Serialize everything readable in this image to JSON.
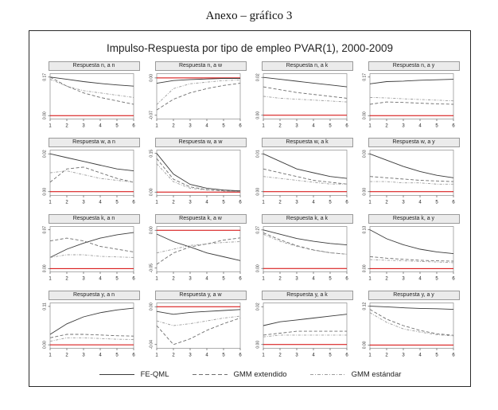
{
  "page": {
    "annex_title": "Anexo – gráfico 3"
  },
  "figure": {
    "title": "Impulso-Respuesta por tipo de empleo PVAR(1), 2000-2009"
  },
  "legend": {
    "items": [
      {
        "label": "FE-QML",
        "style": "solid"
      },
      {
        "label": "GMM extendido",
        "style": "dashed"
      },
      {
        "label": "GMM estándar",
        "style": "dashdot"
      }
    ]
  },
  "colors": {
    "series": [
      "#3a3a3a",
      "#6e6e6e",
      "#9c9c9c"
    ],
    "zero_line": "#d40000",
    "border": "#8a8a8a",
    "header_bg": "#ebebeb"
  },
  "chart_data": {
    "type": "line",
    "x": [
      1,
      2,
      3,
      4,
      5,
      6
    ],
    "xlabel": "",
    "ylabel": "",
    "grid": false,
    "legend_position": "bottom",
    "series_names": [
      "FE-QML",
      "GMM extendido",
      "GMM estándar"
    ],
    "subplots": [
      {
        "title": "Respuesta n, a n",
        "yticks": [
          0,
          0.17
        ],
        "ylim": [
          -0.015,
          0.185
        ],
        "zero_line": true,
        "series": [
          [
            0.17,
            0.16,
            0.15,
            0.142,
            0.135,
            0.13
          ],
          [
            0.17,
            0.13,
            0.1,
            0.08,
            0.065,
            0.05
          ],
          [
            0.16,
            0.13,
            0.11,
            0.1,
            0.09,
            0.08
          ]
        ]
      },
      {
        "title": "Respuesta n, a w",
        "yticks": [
          -0.07,
          0
        ],
        "ylim": [
          -0.077,
          0.008
        ],
        "zero_line": true,
        "series": [
          [
            -0.01,
            -0.005,
            -0.003,
            -0.002,
            -0.001,
            -0.001
          ],
          [
            -0.06,
            -0.04,
            -0.028,
            -0.02,
            -0.014,
            -0.01
          ],
          [
            -0.05,
            -0.02,
            -0.011,
            -0.008,
            -0.005,
            -0.004
          ]
        ]
      },
      {
        "title": "Respuesta n, a k",
        "yticks": [
          0,
          0.02
        ],
        "ylim": [
          -0.002,
          0.022
        ],
        "zero_line": true,
        "series": [
          [
            0.02,
            0.019,
            0.018,
            0.017,
            0.016,
            0.015
          ],
          [
            0.015,
            0.0135,
            0.012,
            0.011,
            0.01,
            0.009
          ],
          [
            0.01,
            0.009,
            0.0085,
            0.008,
            0.0075,
            0.007
          ]
        ]
      },
      {
        "title": "Respuesta n, a y",
        "yticks": [
          0,
          0.17
        ],
        "ylim": [
          -0.015,
          0.185
        ],
        "zero_line": true,
        "series": [
          [
            0.14,
            0.15,
            0.152,
            0.156,
            0.158,
            0.16
          ],
          [
            0.05,
            0.06,
            0.058,
            0.055,
            0.052,
            0.05
          ],
          [
            0.08,
            0.078,
            0.074,
            0.071,
            0.068,
            0.065
          ]
        ]
      },
      {
        "title": "Respuesta w, a n",
        "yticks": [
          0,
          0.02
        ],
        "ylim": [
          -0.002,
          0.022
        ],
        "zero_line": true,
        "series": [
          [
            0.02,
            0.018,
            0.016,
            0.014,
            0.012,
            0.011
          ],
          [
            0.005,
            0.012,
            0.013,
            0.01,
            0.007,
            0.005
          ],
          [
            0.01,
            0.011,
            0.009,
            0.007,
            0.006,
            0.005
          ]
        ]
      },
      {
        "title": "Respuesta w, a w",
        "yticks": [
          0,
          0.15
        ],
        "ylim": [
          -0.013,
          0.163
        ],
        "zero_line": true,
        "series": [
          [
            0.15,
            0.07,
            0.03,
            0.015,
            0.008,
            0.005
          ],
          [
            0.13,
            0.05,
            0.02,
            0.01,
            0.005,
            0.003
          ],
          [
            0.11,
            0.04,
            0.015,
            0.008,
            0.004,
            0.002
          ]
        ]
      },
      {
        "title": "Respuesta w, a k",
        "yticks": [
          0,
          0.01
        ],
        "ylim": [
          -0.001,
          0.011
        ],
        "zero_line": true,
        "series": [
          [
            0.01,
            0.008,
            0.006,
            0.005,
            0.004,
            0.0035
          ],
          [
            0.006,
            0.005,
            0.004,
            0.003,
            0.0025,
            0.002
          ],
          [
            0.004,
            0.0035,
            0.003,
            0.0025,
            0.002,
            0.002
          ]
        ]
      },
      {
        "title": "Respuesta w, a y",
        "yticks": [
          0,
          0.03
        ],
        "ylim": [
          -0.003,
          0.033
        ],
        "zero_line": true,
        "series": [
          [
            0.03,
            0.025,
            0.02,
            0.016,
            0.013,
            0.011
          ],
          [
            0.012,
            0.011,
            0.01,
            0.009,
            0.0085,
            0.008
          ],
          [
            0.008,
            0.008,
            0.007,
            0.007,
            0.006,
            0.006
          ]
        ]
      },
      {
        "title": "Respuesta k, a n",
        "yticks": [
          0,
          0.07
        ],
        "ylim": [
          -0.006,
          0.076
        ],
        "zero_line": true,
        "series": [
          [
            0.02,
            0.035,
            0.046,
            0.055,
            0.061,
            0.065
          ],
          [
            0.05,
            0.055,
            0.05,
            0.04,
            0.035,
            0.03
          ],
          [
            0.02,
            0.025,
            0.025,
            0.022,
            0.021,
            0.02
          ]
        ]
      },
      {
        "title": "Respuesta k, a w",
        "yticks": [
          -0.05,
          0
        ],
        "ylim": [
          -0.055,
          0.005
        ],
        "zero_line": true,
        "series": [
          [
            -0.005,
            -0.015,
            -0.022,
            -0.03,
            -0.035,
            -0.04
          ],
          [
            -0.045,
            -0.03,
            -0.022,
            -0.018,
            -0.013,
            -0.01
          ],
          [
            -0.03,
            -0.025,
            -0.02,
            -0.018,
            -0.016,
            -0.015
          ]
        ]
      },
      {
        "title": "Respuesta k, a k",
        "yticks": [
          0,
          0.27
        ],
        "ylim": [
          -0.024,
          0.294
        ],
        "zero_line": true,
        "series": [
          [
            0.27,
            0.24,
            0.21,
            0.19,
            0.175,
            0.165
          ],
          [
            0.25,
            0.2,
            0.16,
            0.13,
            0.11,
            0.1
          ],
          [
            0.24,
            0.19,
            0.155,
            0.128,
            0.11,
            0.1
          ]
        ]
      },
      {
        "title": "Respuesta k, a y",
        "yticks": [
          0,
          0.13
        ],
        "ylim": [
          -0.011,
          0.141
        ],
        "zero_line": true,
        "series": [
          [
            0.13,
            0.1,
            0.08,
            0.065,
            0.056,
            0.05
          ],
          [
            0.04,
            0.035,
            0.031,
            0.028,
            0.026,
            0.025
          ],
          [
            0.03,
            0.028,
            0.026,
            0.024,
            0.022,
            0.02
          ]
        ]
      },
      {
        "title": "Respuesta y, a n",
        "yticks": [
          0,
          0.11
        ],
        "ylim": [
          -0.01,
          0.12
        ],
        "zero_line": true,
        "series": [
          [
            0.03,
            0.06,
            0.08,
            0.092,
            0.1,
            0.105
          ],
          [
            0.02,
            0.03,
            0.03,
            0.028,
            0.026,
            0.025
          ],
          [
            0.01,
            0.02,
            0.02,
            0.018,
            0.016,
            0.015
          ]
        ]
      },
      {
        "title": "Respuesta y, a w",
        "yticks": [
          -0.04,
          0
        ],
        "ylim": [
          -0.044,
          0.004
        ],
        "zero_line": true,
        "series": [
          [
            -0.005,
            -0.008,
            -0.006,
            -0.005,
            -0.004,
            -0.003
          ],
          [
            -0.02,
            -0.04,
            -0.034,
            -0.025,
            -0.018,
            -0.012
          ],
          [
            -0.015,
            -0.02,
            -0.018,
            -0.015,
            -0.012,
            -0.01
          ]
        ]
      },
      {
        "title": "Respuesta y, a k",
        "yticks": [
          0,
          0.02
        ],
        "ylim": [
          -0.002,
          0.022
        ],
        "zero_line": true,
        "series": [
          [
            0.01,
            0.012,
            0.013,
            0.014,
            0.015,
            0.016
          ],
          [
            0.005,
            0.006,
            0.007,
            0.007,
            0.007,
            0.007
          ],
          [
            0.004,
            0.005,
            0.005,
            0.005,
            0.005,
            0.005
          ]
        ]
      },
      {
        "title": "Respuesta y, a y",
        "yticks": [
          0,
          0.12
        ],
        "ylim": [
          -0.01,
          0.13
        ],
        "zero_line": true,
        "series": [
          [
            0.12,
            0.118,
            0.115,
            0.113,
            0.112,
            0.11
          ],
          [
            0.11,
            0.08,
            0.06,
            0.045,
            0.035,
            0.03
          ],
          [
            0.1,
            0.07,
            0.05,
            0.04,
            0.032,
            0.028
          ]
        ]
      }
    ]
  }
}
